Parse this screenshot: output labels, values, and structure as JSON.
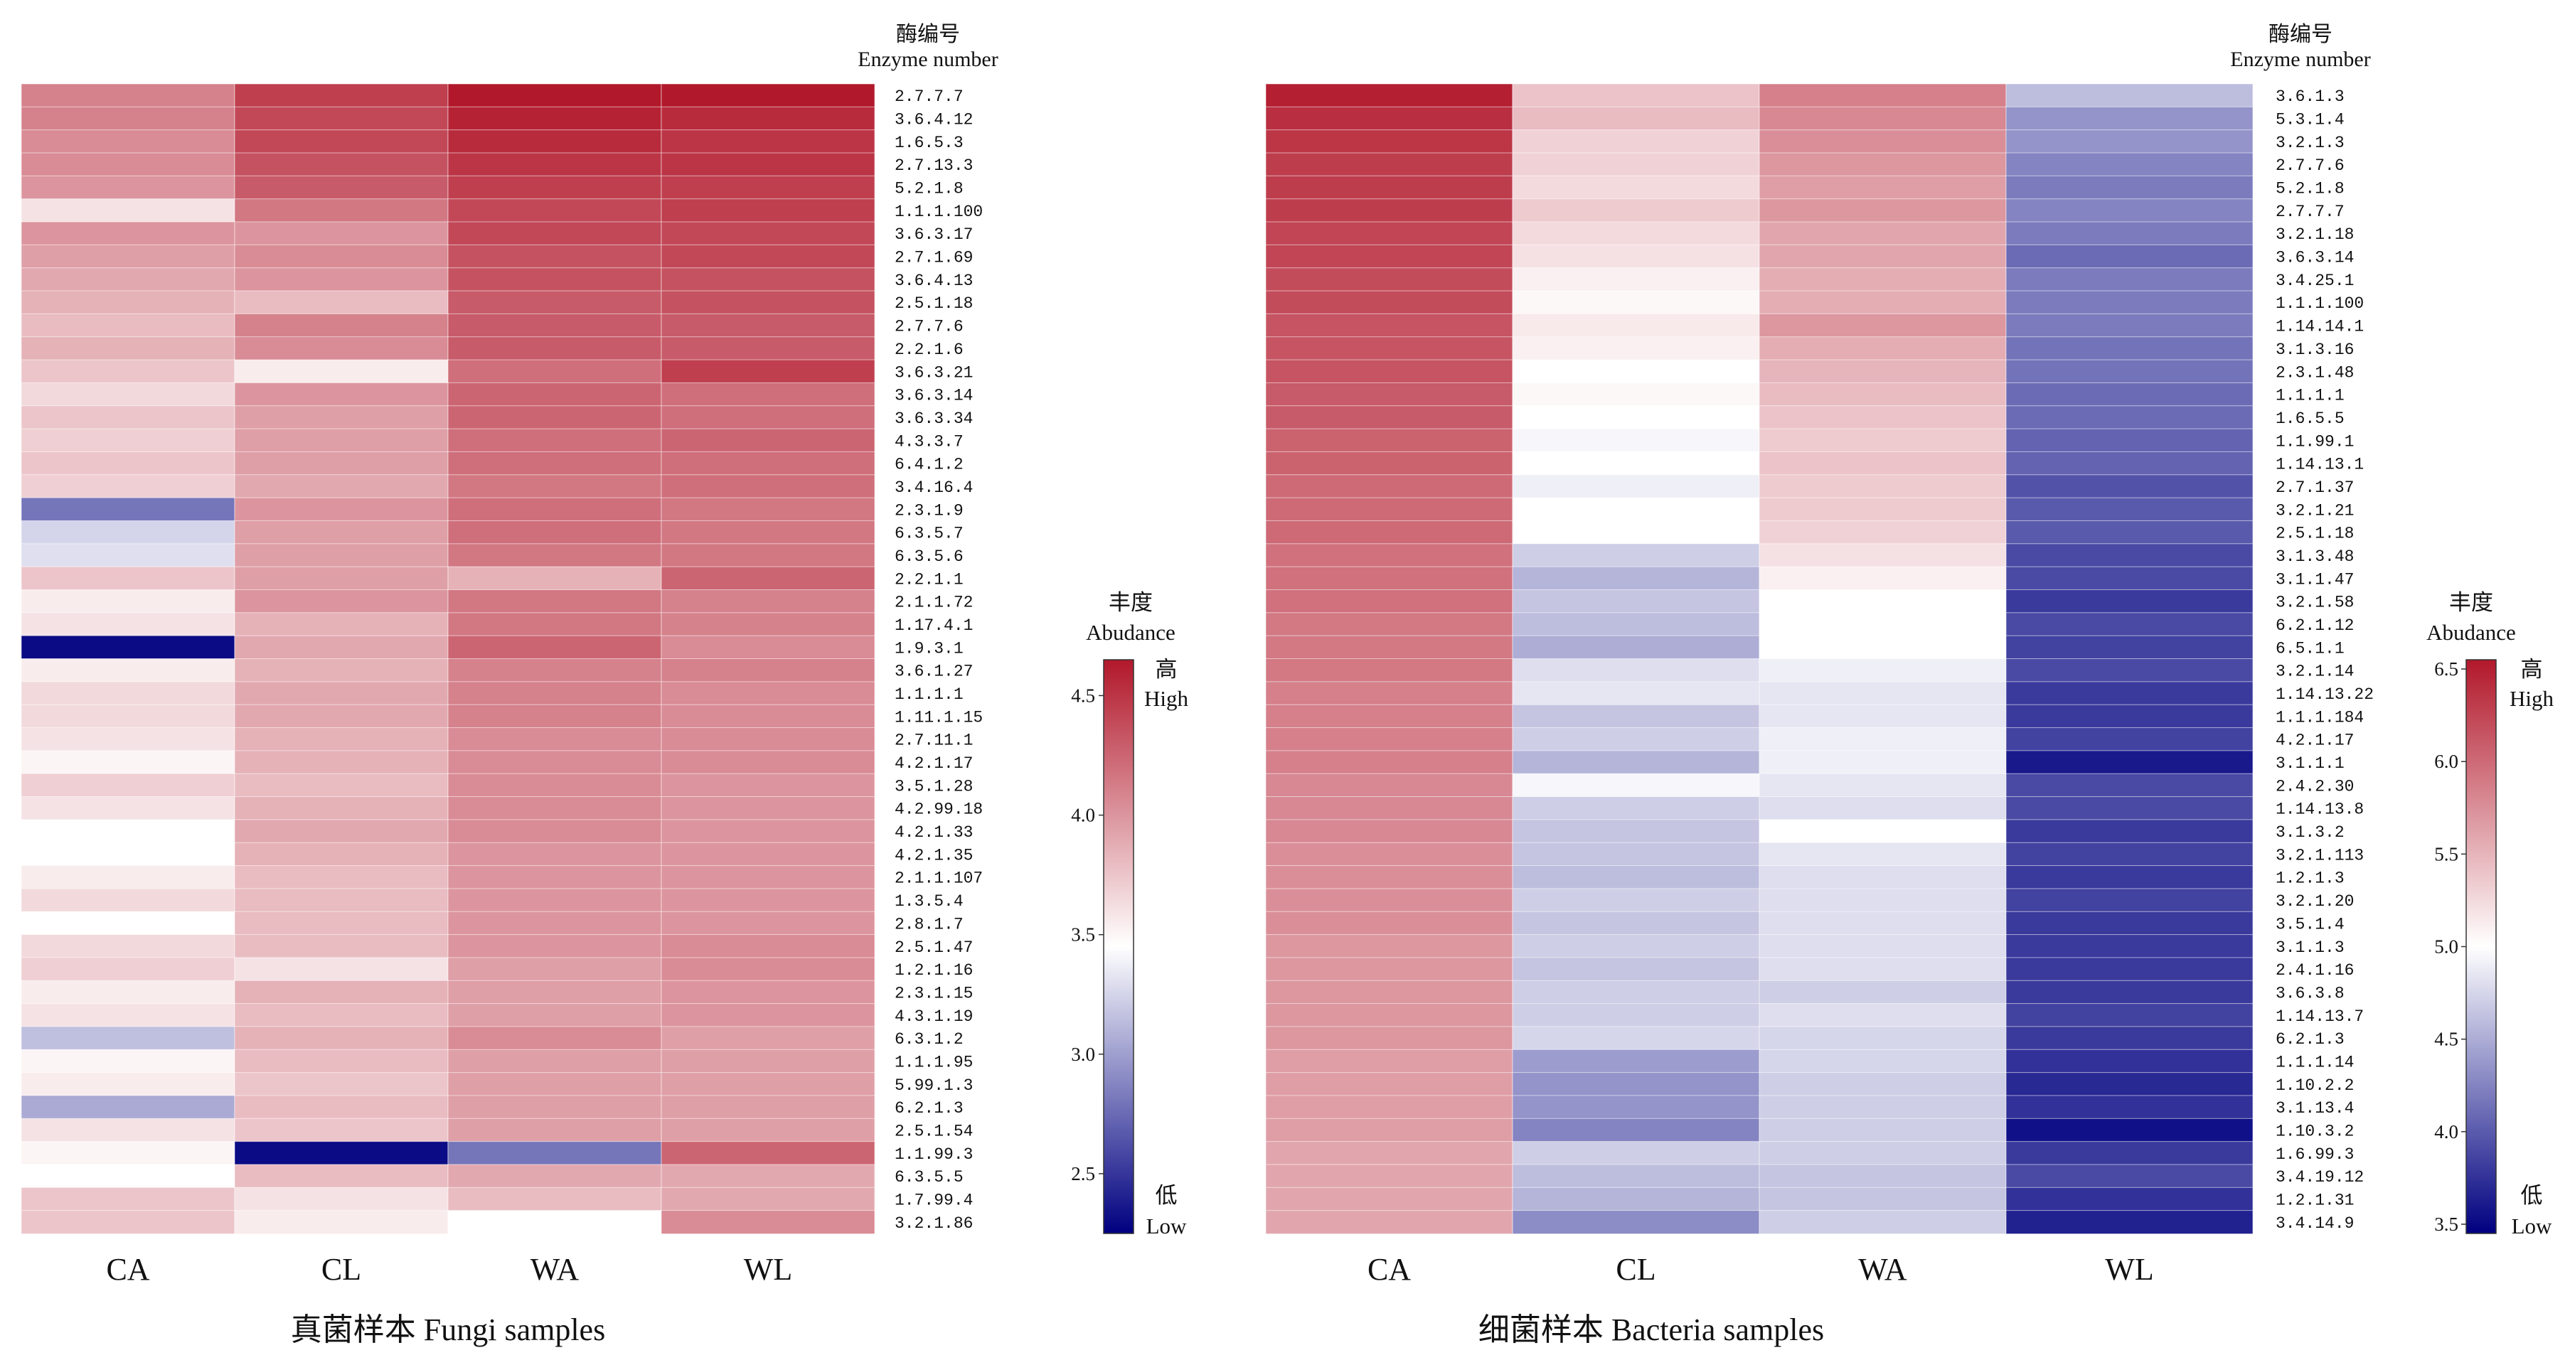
{
  "chart_data": [
    {
      "type": "heatmap",
      "title": "真菌样本  Fungi samples",
      "columns": [
        "CA",
        "CL",
        "WA",
        "WL"
      ],
      "row_axis_title": [
        "酶编号",
        "Enzyme number"
      ],
      "rows": [
        "2.7.7.7",
        "3.6.4.12",
        "1.6.5.3",
        "2.7.13.3",
        "5.2.1.8",
        "1.1.1.100",
        "3.6.3.17",
        "2.7.1.69",
        "3.6.4.13",
        "2.5.1.18",
        "2.7.7.6",
        "2.2.1.6",
        "3.6.3.21",
        "3.6.3.14",
        "3.6.3.34",
        "4.3.3.7",
        "6.4.1.2",
        "3.4.16.4",
        "2.3.1.9",
        "6.3.5.7",
        "6.3.5.6",
        "2.2.1.1",
        "2.1.1.72",
        "1.17.4.1",
        "1.9.3.1",
        "3.6.1.27",
        "1.1.1.1",
        "1.11.1.15",
        "2.7.11.1",
        "4.2.1.17",
        "3.5.1.28",
        "4.2.99.18",
        "4.2.1.33",
        "4.2.1.35",
        "2.1.1.107",
        "1.3.5.4",
        "2.8.1.7",
        "2.5.1.47",
        "1.2.1.16",
        "2.3.1.15",
        "4.3.1.19",
        "6.3.1.2",
        "1.1.1.95",
        "5.99.1.3",
        "6.2.1.3",
        "2.5.1.54",
        "1.1.99.3",
        "6.3.5.5",
        "1.7.99.4",
        "3.2.1.86"
      ],
      "values": [
        [
          4.1,
          4.45,
          4.65,
          4.65
        ],
        [
          4.1,
          4.4,
          4.6,
          4.55
        ],
        [
          4.05,
          4.4,
          4.55,
          4.5
        ],
        [
          4.05,
          4.35,
          4.5,
          4.5
        ],
        [
          4.0,
          4.3,
          4.45,
          4.45
        ],
        [
          3.6,
          4.15,
          4.4,
          4.45
        ],
        [
          4.0,
          4.0,
          4.4,
          4.4
        ],
        [
          3.95,
          4.05,
          4.35,
          4.4
        ],
        [
          3.9,
          4.0,
          4.35,
          4.35
        ],
        [
          3.85,
          3.8,
          4.3,
          4.35
        ],
        [
          3.8,
          4.1,
          4.3,
          4.3
        ],
        [
          3.85,
          4.05,
          4.3,
          4.3
        ],
        [
          3.75,
          3.55,
          4.2,
          4.45
        ],
        [
          3.65,
          4.0,
          4.25,
          4.2
        ],
        [
          3.75,
          3.95,
          4.25,
          4.2
        ],
        [
          3.7,
          3.95,
          4.2,
          4.25
        ],
        [
          3.75,
          3.95,
          4.2,
          4.2
        ],
        [
          3.7,
          3.9,
          4.15,
          4.2
        ],
        [
          2.8,
          4.0,
          4.2,
          4.15
        ],
        [
          3.25,
          3.95,
          4.2,
          4.15
        ],
        [
          3.3,
          3.95,
          4.15,
          4.15
        ],
        [
          3.75,
          3.95,
          3.85,
          4.25
        ],
        [
          3.55,
          4.0,
          4.15,
          4.1
        ],
        [
          3.6,
          3.85,
          4.15,
          4.1
        ],
        [
          2.3,
          3.9,
          4.25,
          4.05
        ],
        [
          3.55,
          3.85,
          4.1,
          4.1
        ],
        [
          3.65,
          3.9,
          4.1,
          4.05
        ],
        [
          3.65,
          3.9,
          4.1,
          4.05
        ],
        [
          3.6,
          3.85,
          4.05,
          4.05
        ],
        [
          3.5,
          3.85,
          4.05,
          4.05
        ],
        [
          3.7,
          3.8,
          4.05,
          4.0
        ],
        [
          3.6,
          3.85,
          4.05,
          4.0
        ],
        [
          3.45,
          3.9,
          4.05,
          4.0
        ],
        [
          3.45,
          3.85,
          4.0,
          4.0
        ],
        [
          3.55,
          3.8,
          4.0,
          4.0
        ],
        [
          3.65,
          3.8,
          4.0,
          4.0
        ],
        [
          3.45,
          3.8,
          4.0,
          4.0
        ],
        [
          3.65,
          3.8,
          4.0,
          4.05
        ],
        [
          3.7,
          3.6,
          3.95,
          4.05
        ],
        [
          3.55,
          3.85,
          3.95,
          4.0
        ],
        [
          3.6,
          3.8,
          3.95,
          4.0
        ],
        [
          3.15,
          3.85,
          4.05,
          3.95
        ],
        [
          3.5,
          3.8,
          3.95,
          3.95
        ],
        [
          3.55,
          3.75,
          3.95,
          3.95
        ],
        [
          3.05,
          3.8,
          3.95,
          3.95
        ],
        [
          3.6,
          3.75,
          3.95,
          3.95
        ],
        [
          3.5,
          2.3,
          2.8,
          4.25
        ],
        [
          3.45,
          3.8,
          3.9,
          3.9
        ],
        [
          3.75,
          3.6,
          3.8,
          3.9
        ],
        [
          3.75,
          3.55,
          3.45,
          4.05
        ]
      ],
      "colorbar": {
        "title": [
          "丰度",
          "Abudance"
        ],
        "range": [
          2.25,
          4.65
        ],
        "ticks": [
          2.5,
          3.0,
          3.5,
          4.0,
          4.5
        ],
        "high_label": [
          "高",
          "High"
        ],
        "low_label": [
          "低",
          "Low"
        ]
      },
      "colors": {
        "high": "#b2182b",
        "mid": "#ffffff",
        "low": "#000080"
      }
    },
    {
      "type": "heatmap",
      "title": "细菌样本  Bacteria samples",
      "columns": [
        "CA",
        "CL",
        "WA",
        "WL"
      ],
      "row_axis_title": [
        "酶编号",
        "Enzyme number"
      ],
      "rows": [
        "3.6.1.3",
        "5.3.1.4",
        "3.2.1.3",
        "2.7.7.6",
        "5.2.1.8",
        "2.7.7.7",
        "3.2.1.18",
        "3.6.3.14",
        "3.4.25.1",
        "1.1.1.100",
        "1.14.14.1",
        "3.1.3.16",
        "2.3.1.48",
        "1.1.1.1",
        "1.6.5.5",
        "1.1.99.1",
        "1.14.13.1",
        "2.7.1.37",
        "3.2.1.21",
        "2.5.1.18",
        "3.1.3.48",
        "3.1.1.47",
        "3.2.1.58",
        "6.2.1.12",
        "6.5.1.1",
        "3.2.1.14",
        "1.14.13.22",
        "1.1.1.184",
        "4.2.1.17",
        "3.1.1.1",
        "2.4.2.30",
        "1.14.13.8",
        "3.1.3.2",
        "3.2.1.113",
        "1.2.1.3",
        "3.2.1.20",
        "3.5.1.4",
        "3.1.1.3",
        "2.4.1.16",
        "3.6.3.8",
        "1.14.13.7",
        "6.2.1.3",
        "1.1.1.14",
        "1.10.2.2",
        "3.1.13.4",
        "1.10.3.2",
        "1.6.99.3",
        "3.4.19.12",
        "1.2.1.31",
        "3.4.14.9"
      ],
      "values": [
        [
          6.5,
          5.4,
          5.85,
          4.6
        ],
        [
          6.4,
          5.45,
          5.8,
          4.35
        ],
        [
          6.35,
          5.3,
          5.75,
          4.35
        ],
        [
          6.3,
          5.3,
          5.7,
          4.25
        ],
        [
          6.3,
          5.25,
          5.65,
          4.2
        ],
        [
          6.3,
          5.35,
          5.7,
          4.25
        ],
        [
          6.25,
          5.25,
          5.6,
          4.2
        ],
        [
          6.25,
          5.2,
          5.6,
          4.1
        ],
        [
          6.2,
          5.1,
          5.55,
          4.2
        ],
        [
          6.2,
          5.05,
          5.55,
          4.2
        ],
        [
          6.15,
          5.15,
          5.7,
          4.2
        ],
        [
          6.15,
          5.1,
          5.55,
          4.15
        ],
        [
          6.15,
          5.0,
          5.5,
          4.15
        ],
        [
          6.1,
          5.05,
          5.45,
          4.1
        ],
        [
          6.1,
          5.0,
          5.4,
          4.1
        ],
        [
          6.05,
          4.95,
          5.35,
          4.05
        ],
        [
          6.05,
          5.0,
          5.4,
          4.05
        ],
        [
          6.0,
          4.9,
          5.35,
          3.95
        ],
        [
          6.0,
          5.0,
          5.35,
          4.0
        ],
        [
          6.0,
          5.0,
          5.3,
          4.0
        ],
        [
          5.95,
          4.7,
          5.2,
          3.9
        ],
        [
          5.95,
          4.55,
          5.1,
          3.9
        ],
        [
          5.95,
          4.65,
          5.0,
          3.8
        ],
        [
          5.9,
          4.6,
          5.0,
          3.9
        ],
        [
          5.9,
          4.5,
          5.0,
          3.85
        ],
        [
          5.9,
          4.8,
          4.9,
          3.9
        ],
        [
          5.85,
          4.85,
          4.85,
          3.8
        ],
        [
          5.85,
          4.65,
          4.85,
          3.8
        ],
        [
          5.85,
          4.7,
          4.9,
          3.85
        ],
        [
          5.85,
          4.55,
          4.9,
          3.6
        ],
        [
          5.8,
          4.95,
          4.85,
          3.9
        ],
        [
          5.8,
          4.7,
          4.8,
          3.9
        ],
        [
          5.8,
          4.65,
          5.0,
          3.8
        ],
        [
          5.75,
          4.65,
          4.85,
          3.85
        ],
        [
          5.75,
          4.6,
          4.8,
          3.8
        ],
        [
          5.75,
          4.7,
          4.8,
          3.85
        ],
        [
          5.75,
          4.65,
          4.8,
          3.8
        ],
        [
          5.7,
          4.7,
          4.8,
          3.8
        ],
        [
          5.7,
          4.65,
          4.8,
          3.8
        ],
        [
          5.7,
          4.7,
          4.7,
          3.8
        ],
        [
          5.7,
          4.7,
          4.8,
          3.85
        ],
        [
          5.7,
          4.75,
          4.75,
          3.8
        ],
        [
          5.65,
          4.4,
          4.75,
          3.75
        ],
        [
          5.65,
          4.35,
          4.7,
          3.7
        ],
        [
          5.65,
          4.35,
          4.7,
          3.75
        ],
        [
          5.65,
          4.25,
          4.7,
          3.55
        ],
        [
          5.6,
          4.7,
          4.7,
          3.8
        ],
        [
          5.6,
          4.6,
          4.65,
          3.9
        ],
        [
          5.6,
          4.55,
          4.65,
          3.75
        ],
        [
          5.6,
          4.3,
          4.7,
          3.65
        ]
      ],
      "colorbar": {
        "title": [
          "丰度",
          "Abudance"
        ],
        "range": [
          3.45,
          6.55
        ],
        "ticks": [
          3.5,
          4.0,
          4.5,
          5.0,
          5.5,
          6.0,
          6.5
        ],
        "high_label": [
          "高",
          "High"
        ],
        "low_label": [
          "低",
          "Low"
        ]
      },
      "colors": {
        "high": "#b2182b",
        "mid": "#ffffff",
        "low": "#000080"
      }
    }
  ]
}
